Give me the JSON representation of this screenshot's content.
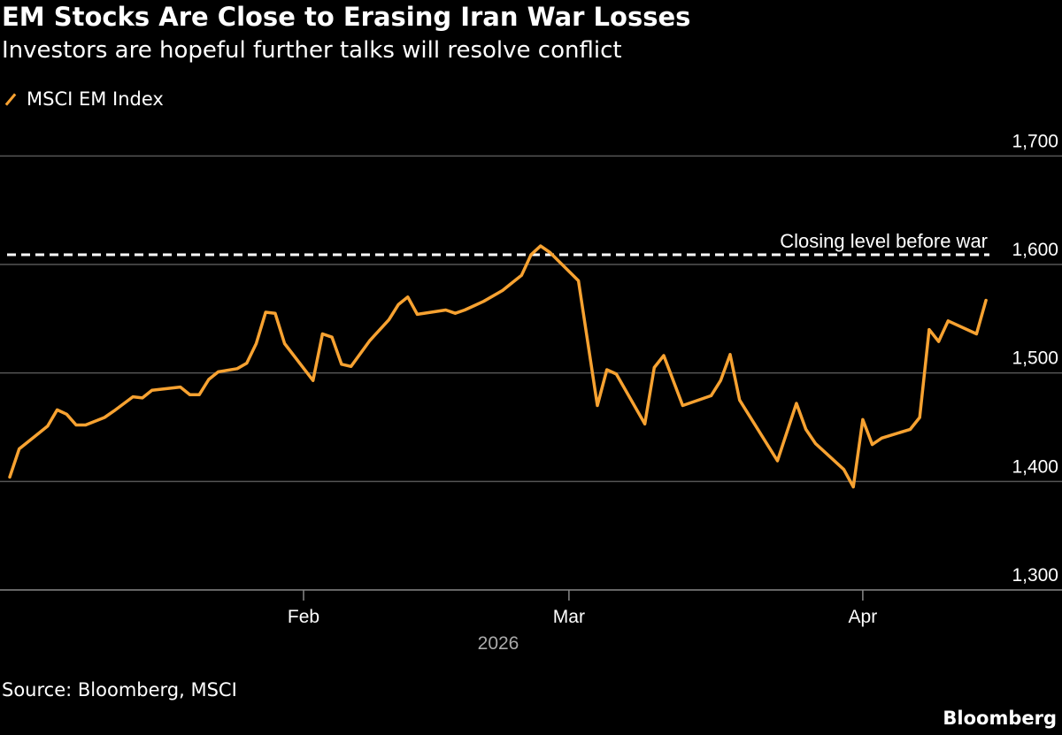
{
  "title": "EM Stocks Are Close to Erasing Iran War Losses",
  "subtitle": "Investors are hopeful further talks will resolve conflict",
  "source": "Source: Bloomberg, MSCI",
  "brand": "Bloomberg",
  "colors": {
    "background": "#000000",
    "series": "#f7a231",
    "grid": "#555555",
    "reference": "#ffffff",
    "year_label": "#aaaaaa"
  },
  "chart_data": {
    "type": "line",
    "title": "EM Stocks Are Close to Erasing Iran War Losses",
    "subtitle": "Investors are hopeful further talks will resolve conflict",
    "legend_placement": "top-left",
    "grid": true,
    "y_axis": {
      "position": "right",
      "ylim": [
        1300,
        1700
      ],
      "ticks": [
        1300,
        1400,
        1500,
        1600,
        1700
      ],
      "tick_labels": [
        "1,300",
        "1,400",
        "1,500",
        "1,600",
        "1,700"
      ]
    },
    "x_axis": {
      "ticks": [
        "2026-02-01",
        "2026-03-01",
        "2026-04-01"
      ],
      "tick_labels": [
        "Feb",
        "Mar",
        "Apr"
      ],
      "year_label": "2026"
    },
    "reference_line": {
      "value": 1609,
      "label": "Closing level before war",
      "style": "dashed"
    },
    "series": [
      {
        "name": "MSCI EM Index",
        "x": [
          "2026-01-01",
          "2026-01-02",
          "2026-01-04",
          "2026-01-05",
          "2026-01-06",
          "2026-01-07",
          "2026-01-08",
          "2026-01-09",
          "2026-01-11",
          "2026-01-12",
          "2026-01-14",
          "2026-01-15",
          "2026-01-16",
          "2026-01-19",
          "2026-01-20",
          "2026-01-21",
          "2026-01-22",
          "2026-01-23",
          "2026-01-25",
          "2026-01-26",
          "2026-01-27",
          "2026-01-28",
          "2026-01-29",
          "2026-01-30",
          "2026-02-02",
          "2026-02-03",
          "2026-02-04",
          "2026-02-05",
          "2026-02-06",
          "2026-02-08",
          "2026-02-10",
          "2026-02-11",
          "2026-02-12",
          "2026-02-13",
          "2026-02-16",
          "2026-02-17",
          "2026-02-18",
          "2026-02-19",
          "2026-02-20",
          "2026-02-22",
          "2026-02-23",
          "2026-02-24",
          "2026-02-25",
          "2026-02-26",
          "2026-02-27",
          "2026-03-02",
          "2026-03-04",
          "2026-03-05",
          "2026-03-06",
          "2026-03-09",
          "2026-03-10",
          "2026-03-11",
          "2026-03-13",
          "2026-03-16",
          "2026-03-17",
          "2026-03-18",
          "2026-03-19",
          "2026-03-23",
          "2026-03-25",
          "2026-03-26",
          "2026-03-27",
          "2026-03-30",
          "2026-03-31",
          "2026-04-01",
          "2026-04-02",
          "2026-04-03",
          "2026-04-06",
          "2026-04-07",
          "2026-04-08",
          "2026-04-09",
          "2026-04-10",
          "2026-04-13",
          "2026-04-14"
        ],
        "values": [
          1404,
          1430,
          1444,
          1451,
          1466,
          1462,
          1452,
          1452,
          1459,
          1465,
          1478,
          1477,
          1484,
          1487,
          1480,
          1480,
          1494,
          1501,
          1504,
          1509,
          1527,
          1556,
          1555,
          1527,
          1493,
          1536,
          1533,
          1508,
          1506,
          1530,
          1549,
          1563,
          1570,
          1554,
          1558,
          1555,
          1558,
          1562,
          1566,
          1576,
          1583,
          1590,
          1609,
          1617,
          1611,
          1585,
          1470,
          1503,
          1499,
          1453,
          1505,
          1516,
          1470,
          1479,
          1493,
          1517,
          1475,
          1419,
          1472,
          1448,
          1435,
          1411,
          1395,
          1457,
          1434,
          1440,
          1448,
          1459,
          1540,
          1529,
          1548,
          1536,
          1567
        ]
      }
    ]
  }
}
